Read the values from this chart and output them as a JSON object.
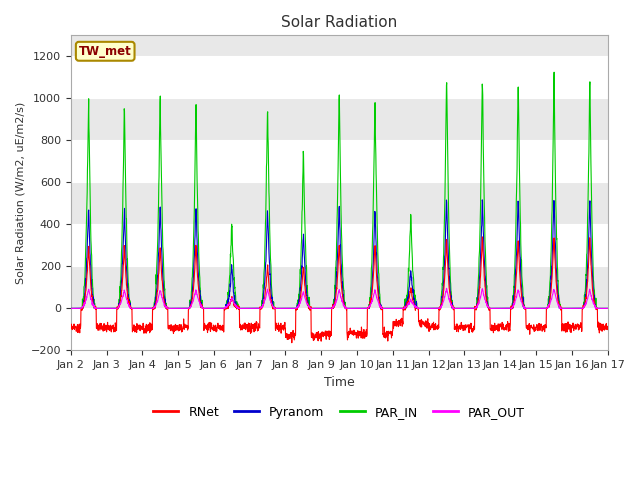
{
  "title": "Solar Radiation",
  "ylabel": "Solar Radiation (W/m2, uE/m2/s)",
  "xlabel": "Time",
  "ylim": [
    -200,
    1300
  ],
  "yticks": [
    -200,
    0,
    200,
    400,
    600,
    800,
    1000,
    1200
  ],
  "xtick_labels": [
    "Jan 2",
    "Jan 3",
    "Jan 4",
    "Jan 5",
    "Jan 6",
    "Jan 7",
    "Jan 8",
    "Jan 9",
    "Jan 10",
    "Jan 11",
    "Jan 12",
    "Jan 13",
    "Jan 14",
    "Jan 15",
    "Jan 16",
    "Jan 17"
  ],
  "station_label": "TW_met",
  "colors": {
    "RNet": "#ff0000",
    "Pyranom": "#0000cd",
    "PAR_IN": "#00cc00",
    "PAR_OUT": "#ff00ff"
  },
  "n_days": 15,
  "day_peaks_par": [
    1025,
    995,
    1030,
    1000,
    415,
    990,
    770,
    1055,
    1025,
    450,
    1130,
    1130,
    1110,
    1130,
    1110
  ],
  "day_peaks_pyr": [
    500,
    490,
    510,
    505,
    200,
    490,
    365,
    505,
    480,
    185,
    540,
    540,
    540,
    540,
    530
  ],
  "day_peaks_rnet": [
    305,
    305,
    305,
    310,
    55,
    210,
    210,
    310,
    310,
    100,
    340,
    355,
    340,
    350,
    350
  ],
  "day_peaks_parout": [
    90,
    90,
    90,
    90,
    50,
    90,
    80,
    90,
    90,
    40,
    95,
    95,
    90,
    95,
    90
  ],
  "night_rnet": [
    -90,
    -95,
    -95,
    -90,
    -90,
    -90,
    -130,
    -120,
    -120,
    -70,
    -90,
    -90,
    -90,
    -90,
    -90
  ],
  "background_color": "#ffffff",
  "plot_bg_color": "#e8e8e8",
  "grid_color": "#ffffff",
  "figsize": [
    6.4,
    4.8
  ],
  "dpi": 100
}
